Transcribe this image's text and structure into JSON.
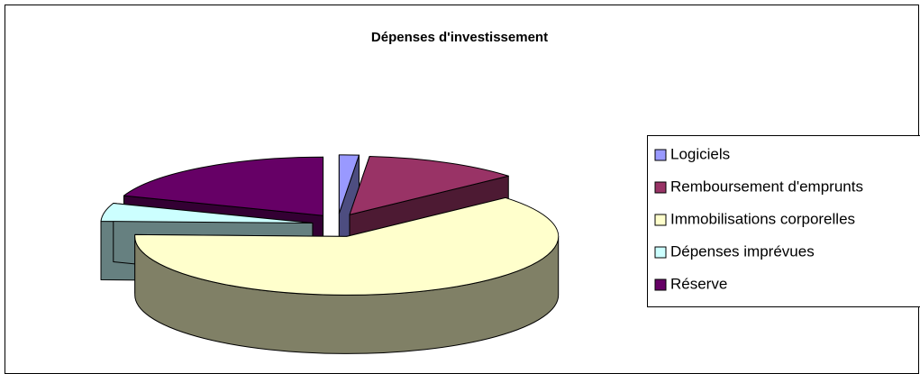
{
  "chart_data": {
    "type": "pie3d",
    "title": "Dépenses d'investissement",
    "categories": [
      "Logiciels",
      "Remboursement d'emprunts",
      "Immobilisations corporelles",
      "Dépenses imprévues",
      "Réserve"
    ],
    "values": [
      1.5,
      12,
      62,
      5,
      19.5
    ],
    "colors": [
      "#9999ff",
      "#993366",
      "#ffffcc",
      "#ccffff",
      "#660066"
    ],
    "side_colors": [
      "#4d4d80",
      "#4d1a33",
      "#808066",
      "#668080",
      "#330033"
    ],
    "legend": "right"
  }
}
